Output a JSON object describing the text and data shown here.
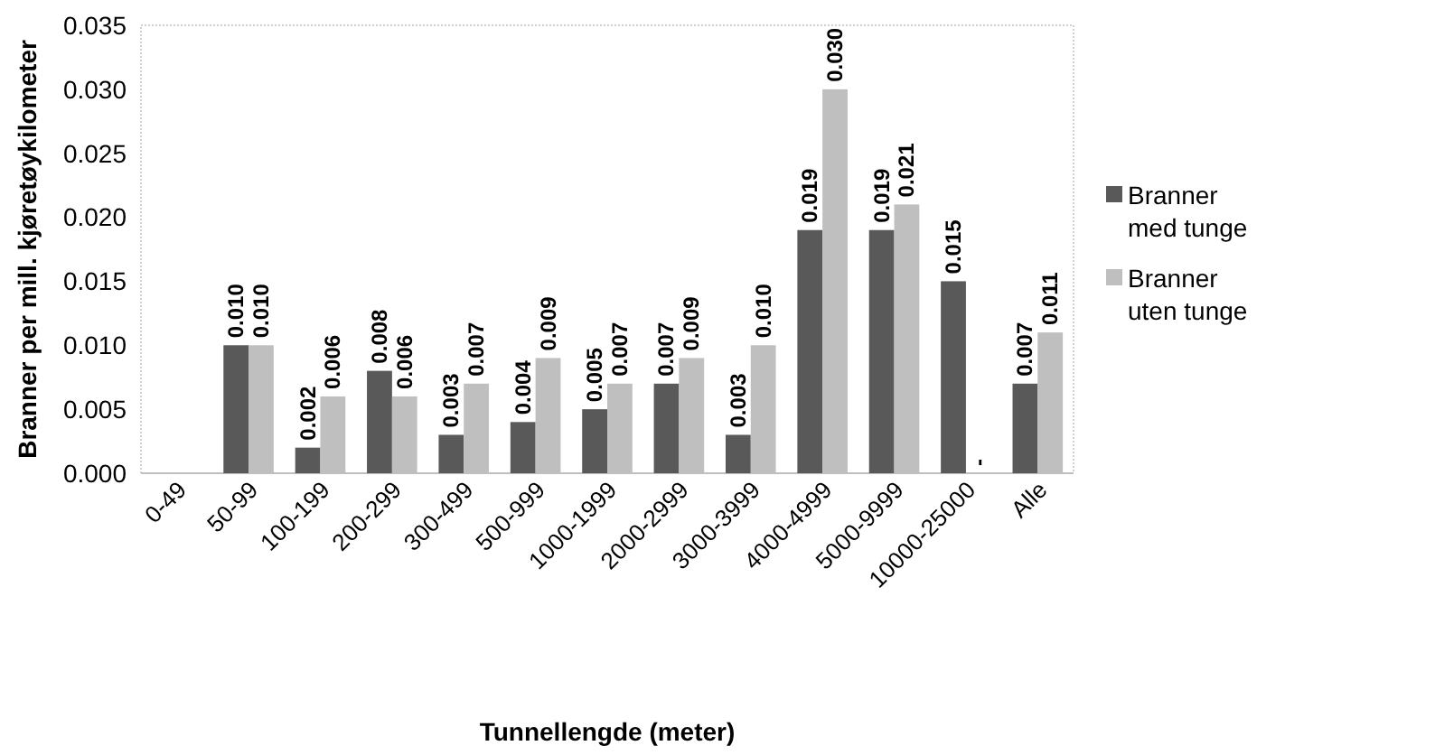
{
  "chart_data": {
    "type": "bar",
    "xlabel": "Tunnellengde (meter)",
    "ylabel": "Branner per mill. kjøretøykilometer",
    "categories": [
      "0-49",
      "50-99",
      "100-199",
      "200-299",
      "300-499",
      "500-999",
      "1000-1999",
      "2000-2999",
      "3000-3999",
      "4000-4999",
      "5000-9999",
      "10000-25000",
      "Alle"
    ],
    "series": [
      {
        "name": "Branner med tunge",
        "color": "#595959",
        "values": [
          null,
          0.01,
          0.002,
          0.008,
          0.003,
          0.004,
          0.005,
          0.007,
          0.003,
          0.019,
          0.019,
          0.015,
          0.007
        ],
        "value_labels": [
          null,
          "0.010",
          "0.002",
          "0.008",
          "0.003",
          "0.004",
          "0.005",
          "0.007",
          "0.003",
          "0.019",
          "0.019",
          "0.015",
          "0.007"
        ]
      },
      {
        "name": "Branner uten tunge",
        "color": "#bfbfbf",
        "values": [
          null,
          0.01,
          0.006,
          0.006,
          0.007,
          0.009,
          0.007,
          0.009,
          0.01,
          0.03,
          0.021,
          0,
          0.011
        ],
        "value_labels": [
          null,
          "0.010",
          "0.006",
          "0.006",
          "0.007",
          "0.009",
          "0.007",
          "0.009",
          "0.010",
          "0.030",
          "0.021",
          "-",
          "0.011"
        ]
      }
    ],
    "ylim": [
      0,
      0.035
    ],
    "yticks": [
      "0.000",
      "0.005",
      "0.010",
      "0.015",
      "0.020",
      "0.025",
      "0.030",
      "0.035"
    ],
    "grid": false,
    "legend": "right"
  }
}
